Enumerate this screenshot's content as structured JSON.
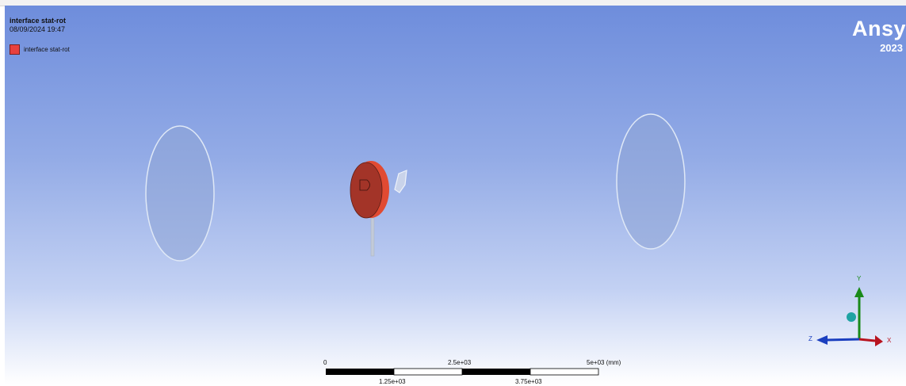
{
  "viewport": {
    "title": "interface stat-rot",
    "date": "08/09/2024 19:47",
    "legend": [
      {
        "label": "interface stat-rot",
        "color": "#e8413e"
      }
    ],
    "logo": {
      "text": "Ansy",
      "year": "2023"
    }
  },
  "scale_bar": {
    "top_labels": [
      "0",
      "2.5e+03",
      "5e+03 (mm)"
    ],
    "bottom_labels": [
      "1.25e+03",
      "3.75e+03"
    ]
  },
  "triad": {
    "y": "Y",
    "z": "Z",
    "x": "X",
    "colors": {
      "y": "#1a8a1a",
      "z": "#1b3fbf",
      "x": "#b8141f",
      "iso": "#1fa3a3"
    }
  },
  "model": {
    "disk_color": "#a33428",
    "disk_edge": "#e14a32",
    "ellipse_fill": "#9aaed8"
  }
}
